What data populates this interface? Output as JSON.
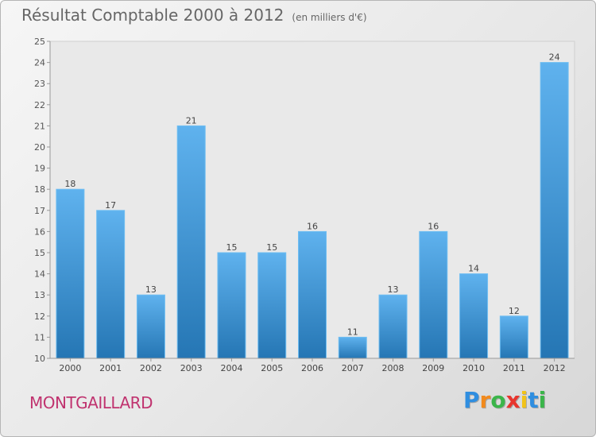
{
  "title": "Résultat Comptable 2000 à 2012",
  "unit_note": "(en milliers d'€)",
  "commune": "MONTGAILLARD",
  "brand": {
    "letters": [
      "P",
      "r",
      "o",
      "x",
      "i",
      "t",
      "i"
    ],
    "colors": [
      "#2f8ee0",
      "#f28a1c",
      "#3bb54a",
      "#e8352e",
      "#f2c318",
      "#2f8ee0",
      "#3bb54a"
    ]
  },
  "colors": {
    "bar_top": "#5fb2ee",
    "bar_bottom": "#2576b4",
    "plot_bg": "#e9e9e9",
    "commune_text": "#c0336f"
  },
  "chart_data": {
    "type": "bar",
    "title": "Résultat Comptable 2000 à 2012",
    "subtitle": "(en milliers d'€)",
    "categories": [
      "2000",
      "2001",
      "2002",
      "2003",
      "2004",
      "2005",
      "2006",
      "2007",
      "2008",
      "2009",
      "2010",
      "2011",
      "2012"
    ],
    "values": [
      18,
      17,
      13,
      21,
      15,
      15,
      16,
      11,
      13,
      16,
      14,
      12,
      24
    ],
    "ylim": [
      10,
      25
    ],
    "yticks": [
      10,
      11,
      12,
      13,
      14,
      15,
      16,
      17,
      18,
      19,
      20,
      21,
      22,
      23,
      24,
      25
    ],
    "grid": false,
    "data_labels": true
  }
}
